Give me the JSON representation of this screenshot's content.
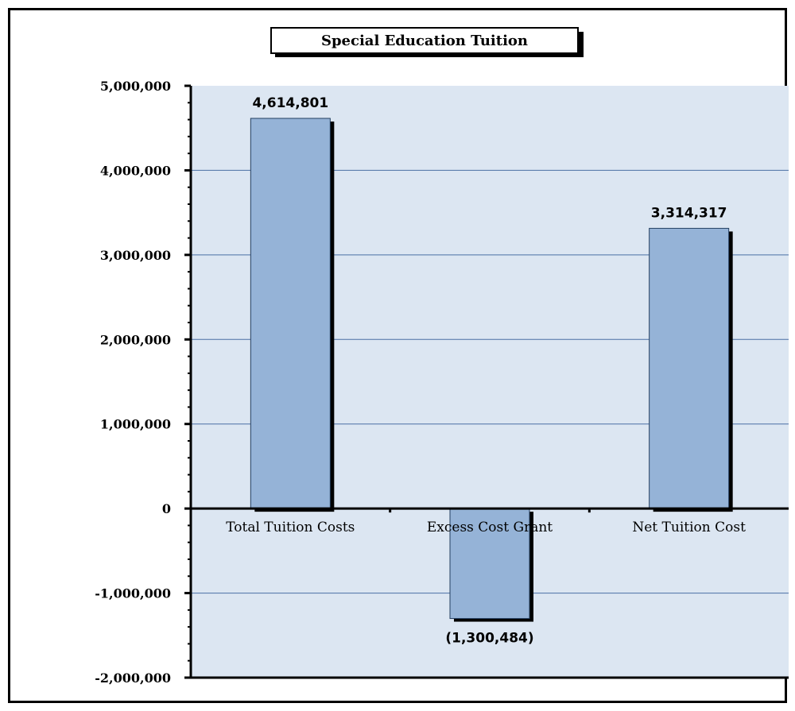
{
  "chart_data": {
    "type": "bar",
    "title": "Special Education Tuition",
    "categories": [
      "Total Tuition Costs",
      "Excess Cost Grant",
      "Net Tuition Cost"
    ],
    "values": [
      4614801,
      -1300484,
      3314317
    ],
    "data_labels": [
      "4,614,801",
      "(1,300,484)",
      "3,314,317"
    ],
    "ylim": [
      -2000000,
      5000000
    ],
    "yticks": [
      5000000,
      4000000,
      3000000,
      2000000,
      1000000,
      0,
      -1000000,
      -2000000
    ],
    "ytick_labels": [
      "5,000,000",
      "4,000,000",
      "3,000,000",
      "2,000,000",
      "1,000,000",
      "0",
      "-1,000,000",
      "-2,000,000"
    ],
    "grid": true,
    "legend": "none"
  },
  "colors": {
    "plot_background": "#dce6f2",
    "bar_fill": "#95b3d7",
    "bar_stroke": "#243f60",
    "bar_shadow": "#000000",
    "gridline": "#4a6fa5"
  }
}
